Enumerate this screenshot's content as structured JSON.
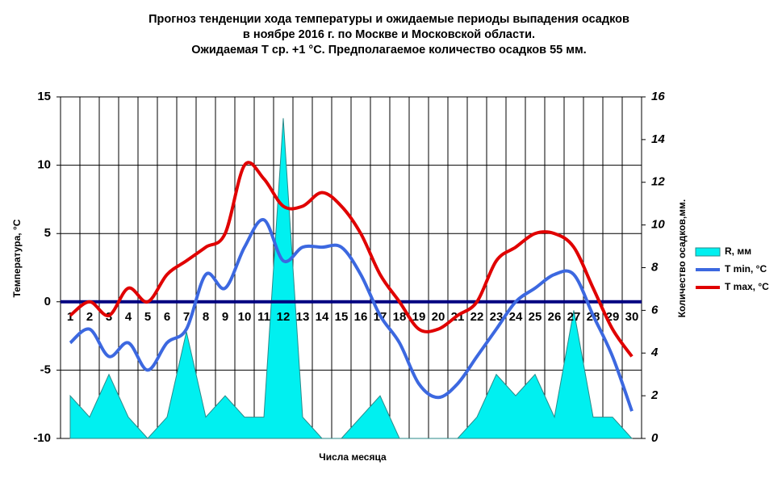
{
  "chart_data": {
    "type": "line",
    "title": [
      "Прогноз тенденции хода температуры и ожидаемые периоды выпадения осадков",
      "в ноябре 2016 г. по Москве и Московской области.",
      "Ожидаемая Т ср. +1 °С. Предполагаемое количество осадков 55 мм."
    ],
    "y_label": "Температура, °С",
    "y2_label": "Количество осадков,мм.",
    "x_label": "Числа месяца",
    "categories": [
      "1",
      "2",
      "3",
      "4",
      "5",
      "6",
      "7",
      "8",
      "9",
      "10",
      "11",
      "12",
      "13",
      "14",
      "15",
      "16",
      "17",
      "18",
      "19",
      "20",
      "21",
      "22",
      "23",
      "24",
      "25",
      "26",
      "27",
      "28",
      "29",
      "30"
    ],
    "ylim": [
      -10,
      15
    ],
    "yticks": [
      -10,
      -5,
      0,
      5,
      10,
      15
    ],
    "y2lim": [
      0,
      16
    ],
    "y2ticks": [
      0,
      2,
      4,
      6,
      8,
      10,
      12,
      14,
      16
    ],
    "series": [
      {
        "name": "R, мм",
        "color": "#00f0f0",
        "axis": "y2",
        "values": [
          2,
          1,
          3,
          1,
          0,
          1,
          5,
          1,
          2,
          1,
          1,
          15,
          1,
          0,
          0,
          1,
          2,
          0,
          0,
          0,
          0,
          1,
          3,
          2,
          3,
          1,
          6,
          1,
          1,
          0
        ]
      },
      {
        "name": "T min, °C",
        "color": "#3c68e0",
        "values": [
          -3,
          -2,
          -4,
          -3,
          -5,
          -3,
          -2,
          2,
          1,
          4,
          6,
          3,
          4,
          4,
          4,
          2,
          -1,
          -3,
          -6,
          -7,
          -6,
          -4,
          -2,
          0,
          1,
          2,
          2,
          -1,
          -4,
          -8
        ]
      },
      {
        "name": "T max, °C",
        "color": "#e00000",
        "values": [
          -1,
          0,
          -1,
          1,
          0,
          2,
          3,
          4,
          5,
          10,
          9,
          7,
          7,
          8,
          7,
          5,
          2,
          0,
          -2,
          -2,
          -1,
          0,
          3,
          4,
          5,
          5,
          4,
          1,
          -2,
          -4
        ]
      }
    ],
    "legend": "right",
    "zero_line_color": "#000080"
  }
}
